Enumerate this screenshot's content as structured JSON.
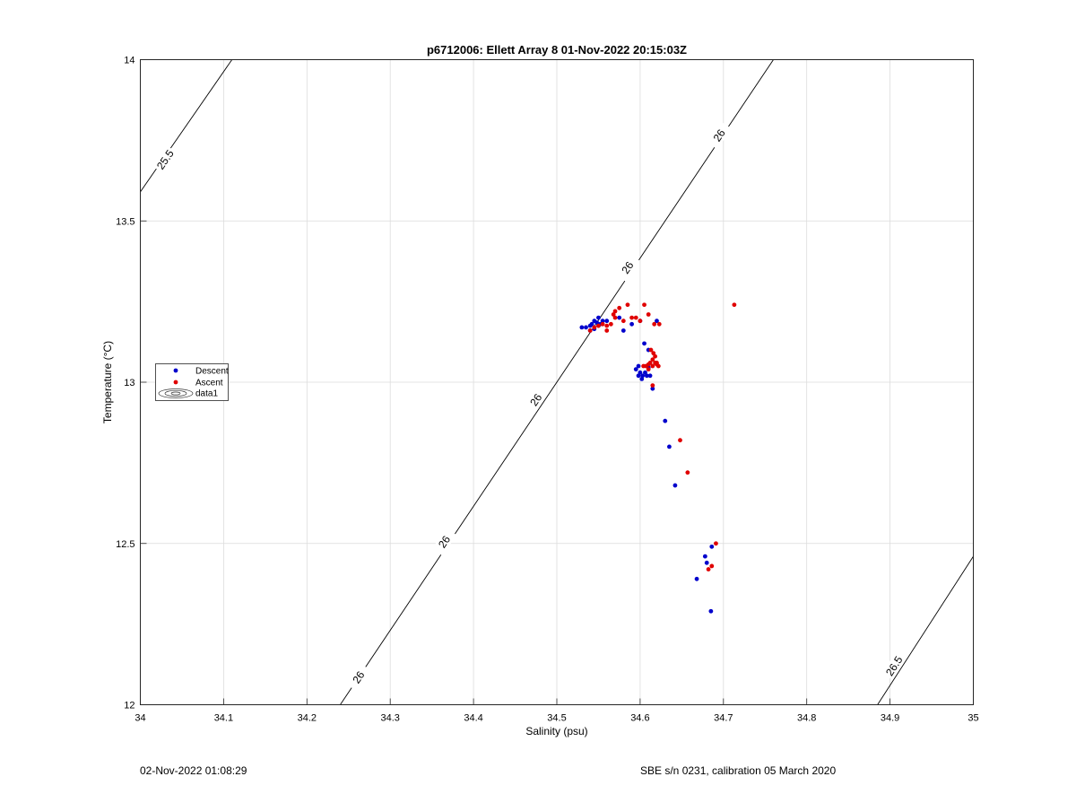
{
  "chart_data": {
    "type": "scatter",
    "title": "p6712006: Ellett Array 8 01-Nov-2022 20:15:03Z",
    "xlabel": "Salinity (psu)",
    "ylabel": "Temperature (°C)",
    "xlim": [
      34,
      35
    ],
    "ylim": [
      12,
      14
    ],
    "x_ticks": [
      "34",
      "34.1",
      "34.2",
      "34.3",
      "34.4",
      "34.5",
      "34.6",
      "34.7",
      "34.8",
      "34.9",
      "35"
    ],
    "y_ticks": [
      "12",
      "12.5",
      "13",
      "13.5",
      "14"
    ],
    "grid": true,
    "legend": {
      "placement": "left-middle",
      "entries": [
        "Descent",
        "Ascent",
        "data1"
      ]
    },
    "colors": {
      "descent": "#0000cc",
      "ascent": "#e00000",
      "contour": "#000000",
      "grid": "#dcdcdc"
    },
    "density_contours": [
      {
        "level": "25.5",
        "points": [
          [
            34.0,
            13.59
          ],
          [
            34.11,
            14.0
          ]
        ],
        "labels": [
          {
            "text": "25.5",
            "x": 34.03,
            "y": 13.69
          }
        ]
      },
      {
        "level": "26",
        "points": [
          [
            34.24,
            12.0
          ],
          [
            34.76,
            14.0
          ]
        ],
        "labels": [
          {
            "text": "26",
            "x": 34.262,
            "y": 12.085
          },
          {
            "text": "26",
            "x": 34.365,
            "y": 12.505
          },
          {
            "text": "26",
            "x": 34.475,
            "y": 12.945
          },
          {
            "text": "26",
            "x": 34.585,
            "y": 13.355
          },
          {
            "text": "26",
            "x": 34.695,
            "y": 13.765
          }
        ]
      },
      {
        "level": "26.5",
        "points": [
          [
            34.885,
            12.0
          ],
          [
            35.0,
            12.46
          ]
        ],
        "labels": [
          {
            "text": "26.5",
            "x": 34.905,
            "y": 12.12
          }
        ]
      }
    ],
    "series": [
      {
        "name": "Descent",
        "color": "#0000cc",
        "x": [
          34.53,
          34.535,
          34.54,
          34.542,
          34.545,
          34.548,
          34.55,
          34.552,
          34.555,
          34.54,
          34.545,
          34.55,
          34.56,
          34.575,
          34.58,
          34.59,
          34.6,
          34.62,
          34.605,
          34.61,
          34.595,
          34.598,
          34.6,
          34.603,
          34.606,
          34.61,
          34.598,
          34.602,
          34.608,
          34.612,
          34.615,
          34.63,
          34.635,
          34.642,
          34.668,
          34.678,
          34.68,
          34.686,
          34.685
        ],
        "y": [
          13.17,
          13.17,
          13.175,
          13.18,
          13.19,
          13.185,
          13.175,
          13.18,
          13.19,
          13.16,
          13.165,
          13.2,
          13.19,
          13.2,
          13.16,
          13.18,
          13.19,
          13.19,
          13.12,
          13.1,
          13.04,
          13.05,
          13.03,
          13.02,
          13.03,
          13.045,
          13.02,
          13.01,
          13.02,
          13.02,
          12.98,
          12.88,
          12.8,
          12.68,
          12.39,
          12.46,
          12.44,
          12.49,
          12.29
        ]
      },
      {
        "name": "Ascent",
        "color": "#e00000",
        "x": [
          34.54,
          34.545,
          34.55,
          34.555,
          34.56,
          34.565,
          34.57,
          34.568,
          34.575,
          34.58,
          34.585,
          34.59,
          34.595,
          34.6,
          34.605,
          34.61,
          34.617,
          34.623,
          34.56,
          34.57,
          34.604,
          34.607,
          34.61,
          34.612,
          34.615,
          34.618,
          34.62,
          34.622,
          34.613,
          34.616,
          34.61,
          34.615,
          34.618,
          34.62,
          34.615,
          34.648,
          34.657,
          34.682,
          34.686,
          34.691,
          34.713
        ],
        "y": [
          13.16,
          13.17,
          13.175,
          13.18,
          13.175,
          13.18,
          13.2,
          13.21,
          13.23,
          13.19,
          13.24,
          13.2,
          13.2,
          13.19,
          13.24,
          13.21,
          13.18,
          13.18,
          13.16,
          13.22,
          13.05,
          13.05,
          13.055,
          13.06,
          13.05,
          13.06,
          13.055,
          13.05,
          13.1,
          13.09,
          13.04,
          13.07,
          13.08,
          13.06,
          12.99,
          12.82,
          12.72,
          12.42,
          12.43,
          12.5,
          13.24
        ]
      }
    ]
  }
}
